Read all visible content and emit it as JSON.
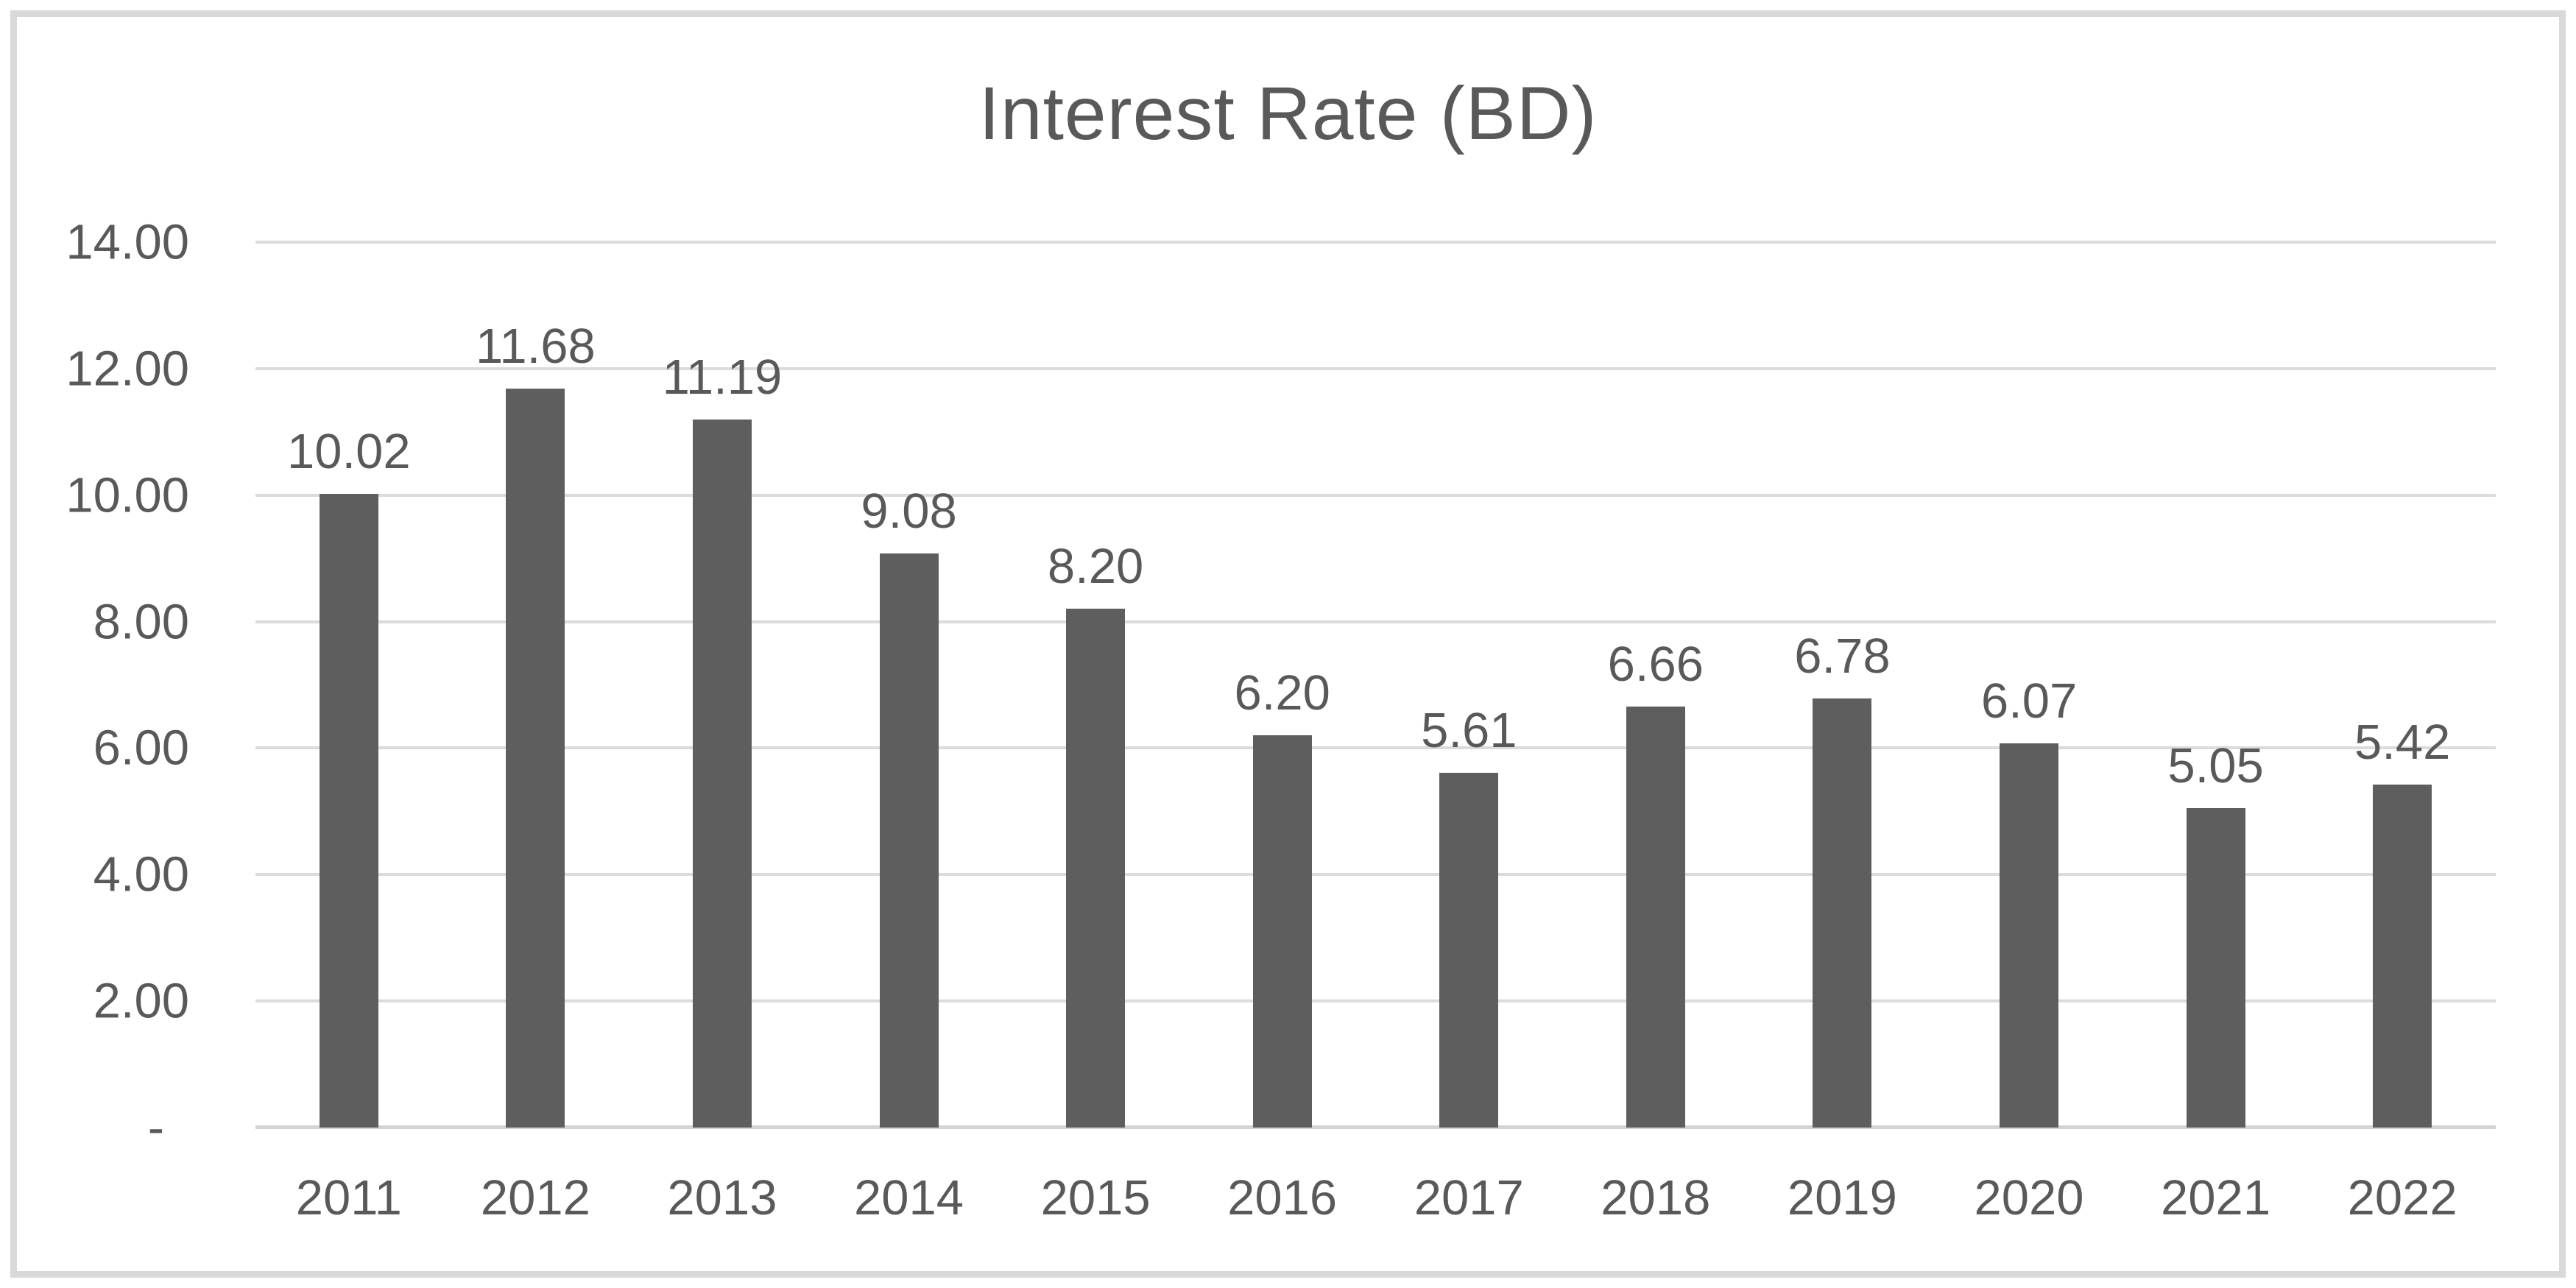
{
  "title": "Interest Rate (BD)",
  "chart_data": {
    "type": "bar",
    "title": "Interest Rate (BD)",
    "xlabel": "",
    "ylabel": "",
    "categories": [
      "2011",
      "2012",
      "2013",
      "2014",
      "2015",
      "2016",
      "2017",
      "2018",
      "2019",
      "2020",
      "2021",
      "2022"
    ],
    "values": [
      10.02,
      11.68,
      11.19,
      9.08,
      8.2,
      6.2,
      5.61,
      6.66,
      6.78,
      6.07,
      5.05,
      5.42
    ],
    "data_labels": [
      "10.02",
      "11.68",
      "11.19",
      "9.08",
      "8.20",
      "6.20",
      "5.61",
      "6.66",
      "6.78",
      "6.07",
      "5.05",
      "5.42"
    ],
    "ylim": [
      0,
      14
    ],
    "y_tick_interval": 2,
    "y_ticks": [
      {
        "value": 14,
        "label": "14.00"
      },
      {
        "value": 12,
        "label": "12.00"
      },
      {
        "value": 10,
        "label": "10.00"
      },
      {
        "value": 8,
        "label": "8.00"
      },
      {
        "value": 6,
        "label": "6.00"
      },
      {
        "value": 4,
        "label": "4.00"
      },
      {
        "value": 2,
        "label": "2.00"
      },
      {
        "value": 0,
        "label": "-"
      }
    ],
    "gridlines": "horizontal",
    "legend_position": "none",
    "colors": {
      "bar": "#5e5e5e",
      "gridline": "#dbdbdb",
      "axis_line": "#d4d4d4",
      "text": "#595959",
      "frame_border": "#d9d9d9",
      "background": "#ffffff"
    }
  }
}
